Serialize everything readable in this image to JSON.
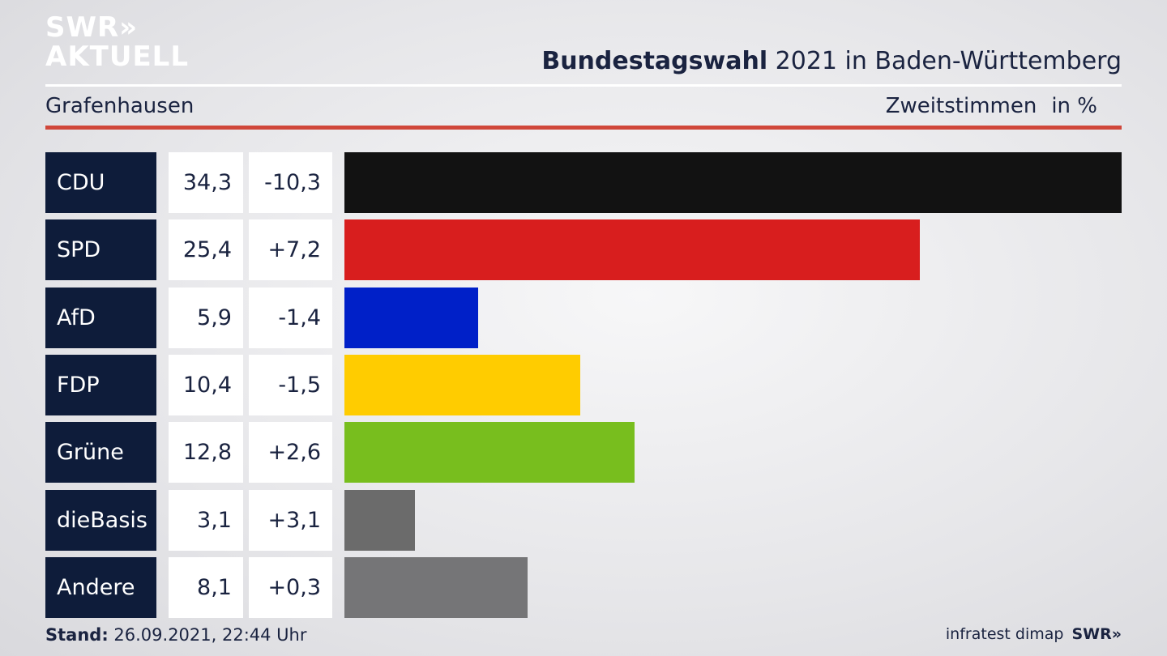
{
  "logo": {
    "line1": "SWR»",
    "line2": "AKTUELL"
  },
  "header": {
    "title_bold": "Bundestagswahl",
    "title_rest": " 2021 in Baden-Württemberg",
    "location": "Grafenhausen",
    "measure": "Zweitstimmen",
    "unit": "in %"
  },
  "chart_data": {
    "type": "bar",
    "orientation": "horizontal",
    "categories": [
      "CDU",
      "SPD",
      "AfD",
      "FDP",
      "Grüne",
      "dieBasis",
      "Andere"
    ],
    "values": [
      34.3,
      25.4,
      5.9,
      10.4,
      12.8,
      3.1,
      8.1
    ],
    "value_labels": [
      "34,3",
      "25,4",
      "5,9",
      "10,4",
      "12,8",
      "3,1",
      "8,1"
    ],
    "change_labels": [
      "-10,3",
      "+7,2",
      "-1,4",
      "-1,5",
      "+2,6",
      "+3,1",
      "+0,3"
    ],
    "colors": [
      "#121212",
      "#d81e1e",
      "#0020c8",
      "#ffcc00",
      "#78be1e",
      "#6b6b6b",
      "#757577"
    ],
    "xlim": [
      0,
      34.3
    ],
    "grid": false,
    "legend": "none"
  },
  "footer": {
    "stand_label": "Stand:",
    "stand_value": " 26.09.2021, 22:44 Uhr",
    "source": "infratest dimap",
    "brand": "SWR»"
  }
}
